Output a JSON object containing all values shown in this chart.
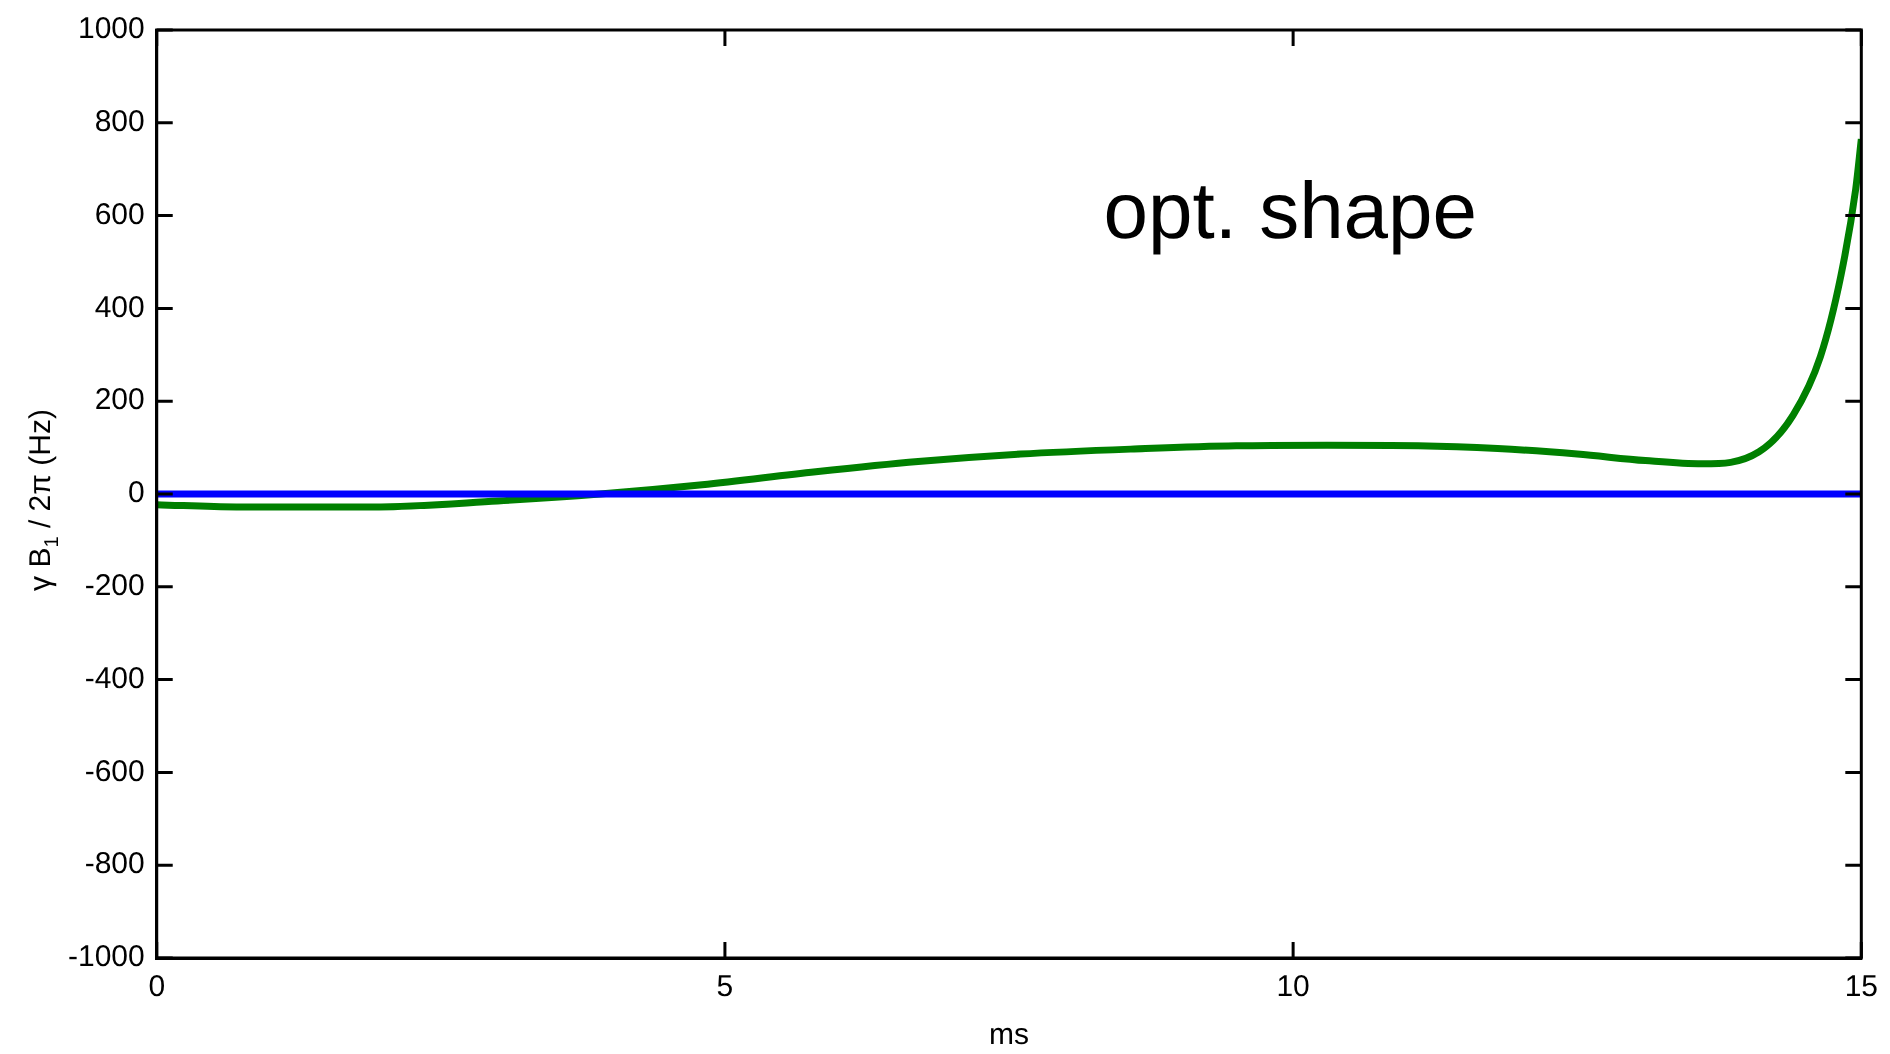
{
  "chart_data": {
    "type": "line",
    "xlabel": "ms",
    "ylabel": "γ B$_{1}$ / 2π (Hz)",
    "annotations": [
      "opt. shape"
    ],
    "xlim": [
      0,
      15
    ],
    "xticks": [
      0,
      5,
      10,
      15
    ],
    "ylim": [
      -1000,
      1000
    ],
    "yticks": [
      -1000,
      -800,
      -600,
      -400,
      -200,
      0,
      200,
      400,
      600,
      800,
      1000
    ],
    "grid": false,
    "legend": false,
    "marker": "none",
    "line_style": "solid",
    "series": [
      {
        "color": "#0000ff",
        "x": [
          0,
          15
        ],
        "values": [
          0,
          0
        ]
      },
      {
        "color": "#008000",
        "x": [
          0,
          0.7,
          1.9,
          3,
          3.9,
          4.8,
          5.8,
          6.7,
          7.6,
          8.6,
          9.5,
          10.3,
          11.1,
          11.8,
          12.5,
          13.1,
          13.6,
          14.1,
          14.4,
          14.64,
          14.82,
          14.95,
          15
        ],
        "values": [
          -23,
          -28,
          -28,
          -15,
          0,
          20,
          48,
          70,
          86,
          97,
          104,
          105,
          104,
          98,
          86,
          72,
          65,
          91,
          170,
          296,
          470,
          656,
          765
        ]
      }
    ]
  }
}
